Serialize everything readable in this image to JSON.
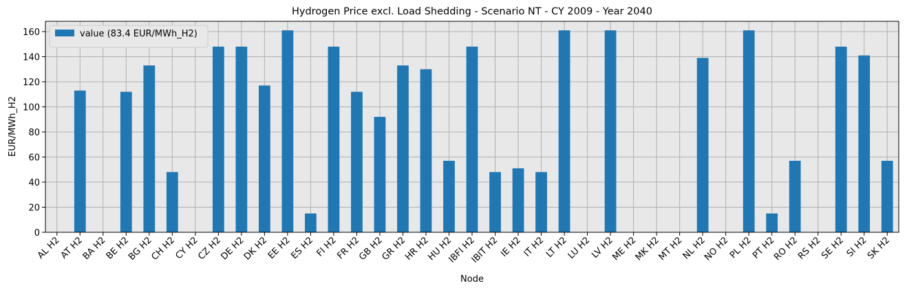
{
  "chart_data": {
    "type": "bar",
    "title": "Hydrogen Price excl. Load Shedding - Scenario NT - CY 2009 - Year 2040",
    "x_label": "Node",
    "y_label": "EUR/MWh_H2",
    "categories": [
      "AL H2",
      "AT H2",
      "BA H2",
      "BE H2",
      "BG H2",
      "CH H2",
      "CY H2",
      "CZ H2",
      "DE H2",
      "DK H2",
      "EE H2",
      "ES H2",
      "FI H2",
      "FR H2",
      "GB H2",
      "GR H2",
      "HR H2",
      "HU H2",
      "IBFI H2",
      "IBIT H2",
      "IE H2",
      "IT H2",
      "LT H2",
      "LU H2",
      "LV H2",
      "ME H2",
      "MK H2",
      "MT H2",
      "NL H2",
      "NO H2",
      "PL H2",
      "PT H2",
      "RO H2",
      "RS H2",
      "SE H2",
      "SI H2",
      "SK H2"
    ],
    "series": [
      {
        "name": "value (83.4 EUR/MWh_H2)",
        "color": "#1f77b4",
        "values": [
          0,
          113,
          0,
          112,
          133,
          48,
          0,
          148,
          148,
          117,
          161,
          15,
          148,
          112,
          92,
          133,
          130,
          57,
          148,
          48,
          51,
          48,
          161,
          0,
          161,
          0,
          0,
          0,
          139,
          0,
          161,
          15,
          57,
          0,
          148,
          141,
          57
        ]
      }
    ],
    "ylim": [
      0,
      168.2
    ],
    "yticks": [
      0,
      20,
      40,
      60,
      80,
      100,
      120,
      140,
      160
    ],
    "grid": true,
    "legend": "upper-left"
  }
}
